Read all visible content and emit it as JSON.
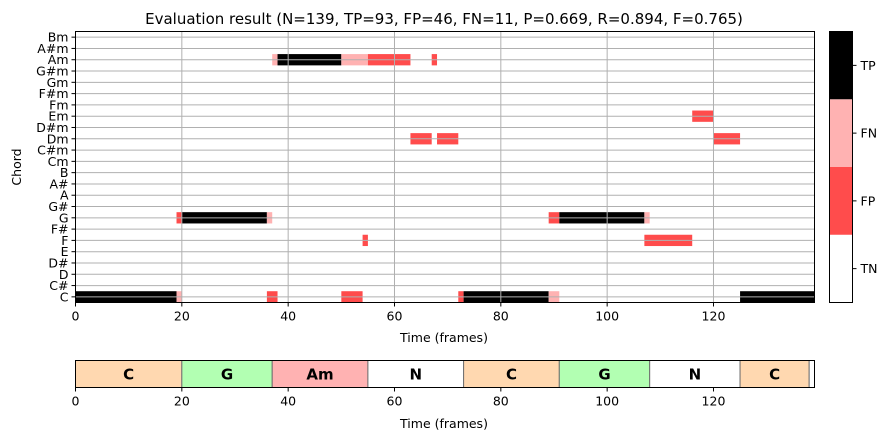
{
  "chart_data": [
    {
      "type": "heatmap",
      "title": "Evaluation result (N=139, TP=93, FP=46, FN=11, P=0.669, R=0.894, F=0.765)",
      "xlabel": "Time (frames)",
      "ylabel": "Chord",
      "xlim": [
        0,
        139
      ],
      "xticks": [
        0,
        20,
        40,
        60,
        80,
        100,
        120
      ],
      "yticks": [
        "C",
        "C#",
        "D",
        "D#",
        "E",
        "F",
        "F#",
        "G",
        "G#",
        "A",
        "A#",
        "B",
        "Cm",
        "C#m",
        "Dm",
        "D#m",
        "Em",
        "Fm",
        "F#m",
        "Gm",
        "G#m",
        "Am",
        "A#m",
        "Bm"
      ],
      "grid": true,
      "colorbar": {
        "labels": [
          "TN",
          "FP",
          "FN",
          "TP"
        ],
        "colors": [
          "#ffffff",
          "#ff4c4c",
          "#ffb2b2",
          "#000000"
        ]
      },
      "cells": [
        {
          "chord": "C",
          "start": 0,
          "end": 19,
          "status": "TP"
        },
        {
          "chord": "C",
          "start": 19,
          "end": 20,
          "status": "FN"
        },
        {
          "chord": "C",
          "start": 36,
          "end": 38,
          "status": "FP"
        },
        {
          "chord": "C",
          "start": 50,
          "end": 54,
          "status": "FP"
        },
        {
          "chord": "C",
          "start": 72,
          "end": 73,
          "status": "FP"
        },
        {
          "chord": "C",
          "start": 73,
          "end": 89,
          "status": "TP"
        },
        {
          "chord": "C",
          "start": 89,
          "end": 91,
          "status": "FN"
        },
        {
          "chord": "C",
          "start": 125,
          "end": 139,
          "status": "TP"
        },
        {
          "chord": "F",
          "start": 54,
          "end": 55,
          "status": "FP"
        },
        {
          "chord": "F",
          "start": 107,
          "end": 116,
          "status": "FP"
        },
        {
          "chord": "G",
          "start": 19,
          "end": 20,
          "status": "FP"
        },
        {
          "chord": "G",
          "start": 20,
          "end": 36,
          "status": "TP"
        },
        {
          "chord": "G",
          "start": 36,
          "end": 37,
          "status": "FN"
        },
        {
          "chord": "G",
          "start": 89,
          "end": 91,
          "status": "FP"
        },
        {
          "chord": "G",
          "start": 91,
          "end": 107,
          "status": "TP"
        },
        {
          "chord": "G",
          "start": 107,
          "end": 108,
          "status": "FN"
        },
        {
          "chord": "Dm",
          "start": 63,
          "end": 67,
          "status": "FP"
        },
        {
          "chord": "Dm",
          "start": 68,
          "end": 72,
          "status": "FP"
        },
        {
          "chord": "Dm",
          "start": 120,
          "end": 125,
          "status": "FP"
        },
        {
          "chord": "Em",
          "start": 116,
          "end": 120,
          "status": "FP"
        },
        {
          "chord": "Am",
          "start": 37,
          "end": 38,
          "status": "FN"
        },
        {
          "chord": "Am",
          "start": 38,
          "end": 50,
          "status": "TP"
        },
        {
          "chord": "Am",
          "start": 50,
          "end": 55,
          "status": "FN"
        },
        {
          "chord": "Am",
          "start": 55,
          "end": 63,
          "status": "FP"
        },
        {
          "chord": "Am",
          "start": 67,
          "end": 68,
          "status": "FP"
        }
      ]
    },
    {
      "type": "bar",
      "xlabel": "Time (frames)",
      "xlim": [
        0,
        139
      ],
      "xticks": [
        0,
        20,
        40,
        60,
        80,
        100,
        120
      ],
      "segments": [
        {
          "label": "C",
          "start": 0,
          "end": 20,
          "color": "#ffd8b0"
        },
        {
          "label": "G",
          "start": 20,
          "end": 37,
          "color": "#b2ffb2"
        },
        {
          "label": "Am",
          "start": 37,
          "end": 55,
          "color": "#ffb2b2"
        },
        {
          "label": "N",
          "start": 55,
          "end": 73,
          "color": "#ffffff"
        },
        {
          "label": "C",
          "start": 73,
          "end": 91,
          "color": "#ffd8b0"
        },
        {
          "label": "G",
          "start": 91,
          "end": 108,
          "color": "#b2ffb2"
        },
        {
          "label": "N",
          "start": 108,
          "end": 125,
          "color": "#ffffff"
        },
        {
          "label": "C",
          "start": 125,
          "end": 138,
          "color": "#ffd8b0"
        },
        {
          "label": "",
          "start": 138,
          "end": 139,
          "color": "#ffffff"
        }
      ]
    }
  ]
}
